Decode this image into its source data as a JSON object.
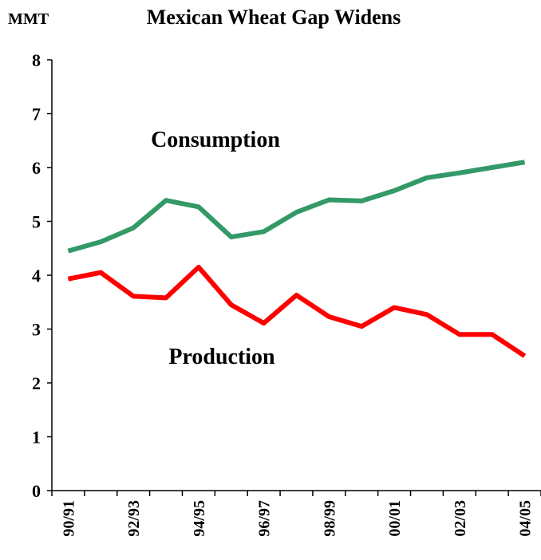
{
  "chart_data": {
    "type": "line",
    "title": "Mexican Wheat Gap Widens",
    "y_label": "MMT",
    "categories": [
      "90/91",
      null,
      "92/93",
      null,
      "94/95",
      null,
      "96/97",
      null,
      "98/99",
      null,
      "00/01",
      null,
      "02/03",
      null,
      "04/05"
    ],
    "series": [
      {
        "name": "Consumption",
        "color": "#339966",
        "values": [
          4.45,
          4.62,
          4.88,
          5.39,
          5.27,
          4.71,
          4.81,
          5.17,
          5.4,
          5.38,
          5.57,
          5.81,
          5.9,
          6.0,
          6.1
        ]
      },
      {
        "name": "Production",
        "color": "#ff0000",
        "values": [
          3.93,
          4.05,
          3.61,
          3.58,
          4.15,
          3.45,
          3.11,
          3.63,
          3.23,
          3.05,
          3.4,
          3.27,
          2.9,
          2.9,
          2.5
        ]
      }
    ],
    "ylim": [
      0,
      8
    ],
    "yticks": [
      0,
      1,
      2,
      3,
      4,
      5,
      6,
      7,
      8
    ]
  }
}
